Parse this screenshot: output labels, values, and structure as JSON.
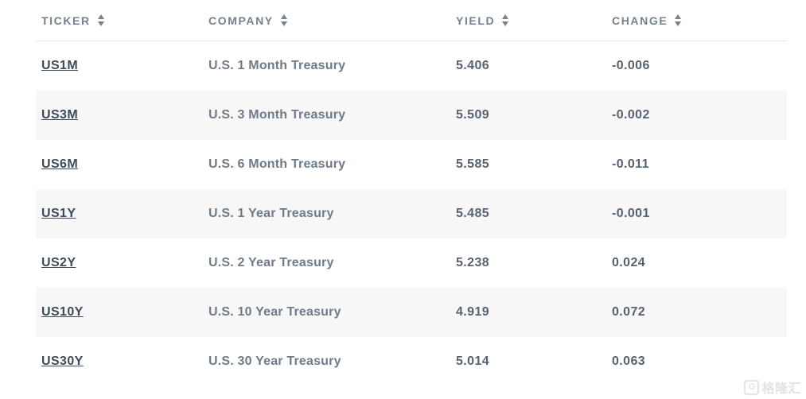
{
  "table": {
    "columns": [
      {
        "key": "ticker",
        "label": "TICKER"
      },
      {
        "key": "company",
        "label": "COMPANY"
      },
      {
        "key": "yield",
        "label": "YIELD"
      },
      {
        "key": "change",
        "label": "CHANGE"
      }
    ],
    "rows": [
      {
        "ticker": "US1M",
        "company": "U.S. 1 Month Treasury",
        "yield": "5.406",
        "change": "-0.006"
      },
      {
        "ticker": "US3M",
        "company": "U.S. 3 Month Treasury",
        "yield": "5.509",
        "change": "-0.002"
      },
      {
        "ticker": "US6M",
        "company": "U.S. 6 Month Treasury",
        "yield": "5.585",
        "change": "-0.011"
      },
      {
        "ticker": "US1Y",
        "company": "U.S. 1 Year Treasury",
        "yield": "5.485",
        "change": "-0.001"
      },
      {
        "ticker": "US2Y",
        "company": "U.S. 2 Year Treasury",
        "yield": "5.238",
        "change": "0.024"
      },
      {
        "ticker": "US10Y",
        "company": "U.S. 10 Year Treasury",
        "yield": "4.919",
        "change": "0.072"
      },
      {
        "ticker": "US30Y",
        "company": "U.S. 30 Year Treasury",
        "yield": "5.014",
        "change": "0.063"
      }
    ]
  },
  "watermark": {
    "logo": "G",
    "text": "格隆汇"
  },
  "colors": {
    "header_text": "#75818d",
    "ticker_link": "#3e4a57",
    "company_text": "#6f7b87",
    "value_text": "#57626e",
    "stripe": "#f7f7f8",
    "dotted_border": "#d8d8d8",
    "watermark": "#e3e3e3"
  }
}
